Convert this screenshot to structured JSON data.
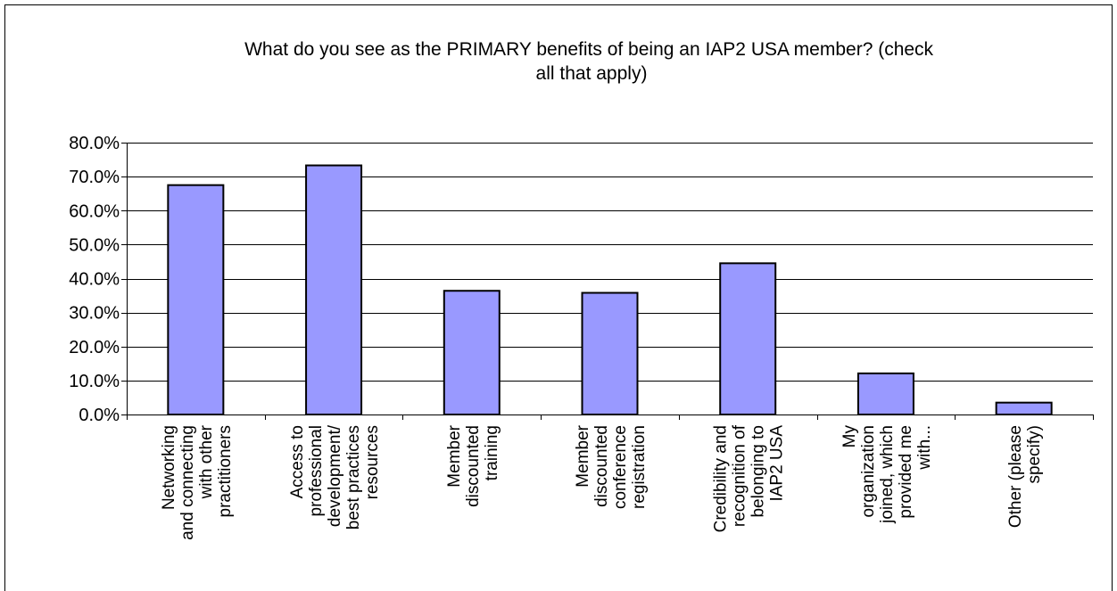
{
  "chart_data": {
    "type": "bar",
    "title": "What do you see as the PRIMARY benefits of being an IAP2 USA member? (check all that apply)",
    "title_lines": [
      "What do you see as the PRIMARY benefits of being an IAP2 USA member? (check",
      "all that apply)"
    ],
    "xlabel": "",
    "ylabel": "",
    "ylim": [
      0,
      80
    ],
    "yticks": [
      0,
      10,
      20,
      30,
      40,
      50,
      60,
      70,
      80
    ],
    "ytick_labels": [
      "0.0%",
      "10.0%",
      "20.0%",
      "30.0%",
      "40.0%",
      "50.0%",
      "60.0%",
      "70.0%",
      "80.0%"
    ],
    "grid": true,
    "legend": "none",
    "bar_color": "#9999ff",
    "bar_edge_color": "#000000",
    "categories": [
      "Networking and connecting with other practitioners",
      "Access to professional development/ best practices resources",
      "Member discounted training",
      "Member discounted conference registration",
      "Credibility and recognition of belonging to IAP2 USA",
      "My organization joined, which provided me with...",
      "Other (please specify)"
    ],
    "category_lines": [
      [
        "Networking",
        "and connecting",
        "with other",
        "practitioners"
      ],
      [
        "Access to",
        "professional",
        "development/",
        "best practices",
        "resources"
      ],
      [
        "Member",
        "discounted",
        "training"
      ],
      [
        "Member",
        "discounted",
        "conference",
        "registration"
      ],
      [
        "Credibility and",
        "recognition of",
        "belonging to",
        "IAP2 USA"
      ],
      [
        "My",
        "organization",
        "joined, which",
        "provided me",
        "with..."
      ],
      [
        "Other (please",
        "specify)"
      ]
    ],
    "values": [
      67.5,
      73.3,
      36.4,
      35.8,
      44.5,
      12.1,
      3.5
    ]
  }
}
